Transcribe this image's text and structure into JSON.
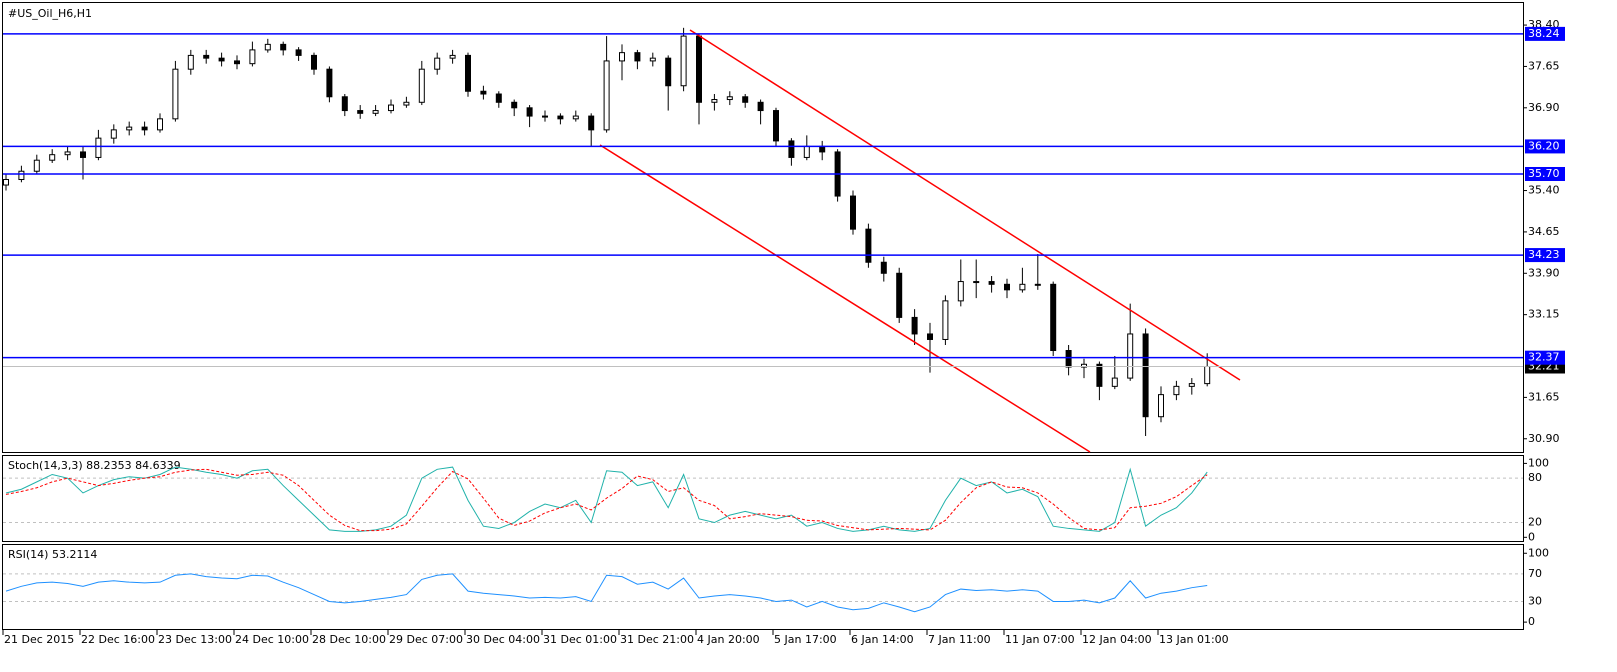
{
  "chart_data": {
    "type": "candlestick",
    "title": "#US_Oil_H6,H1",
    "categories": [
      "21 Dec 2015",
      null,
      null,
      null,
      null,
      "22 Dec 16:00",
      null,
      null,
      null,
      null,
      "23 Dec 13:00",
      null,
      null,
      null,
      null,
      "24 Dec 10:00",
      null,
      null,
      null,
      null,
      "28 Dec 10:00",
      null,
      null,
      null,
      null,
      "29 Dec 07:00",
      null,
      null,
      null,
      null,
      "30 Dec 04:00",
      null,
      null,
      null,
      null,
      "31 Dec 01:00",
      null,
      null,
      null,
      null,
      "31 Dec 21:00",
      null,
      null,
      null,
      null,
      "4 Jan 20:00",
      null,
      null,
      null,
      null,
      "5 Jan 17:00",
      null,
      null,
      null,
      null,
      "6 Jan 14:00",
      null,
      null,
      null,
      null,
      "7 Jan 11:00",
      null,
      null,
      null,
      null,
      "11 Jan 07:00",
      null,
      null,
      null,
      null,
      "12 Jan 04:00",
      null,
      null,
      null,
      null,
      "13 Jan 01:00",
      null,
      null,
      null
    ],
    "ohlc": [
      [
        35.5,
        35.7,
        35.4,
        35.6
      ],
      [
        35.6,
        35.85,
        35.55,
        35.75
      ],
      [
        35.75,
        36.05,
        35.7,
        35.95
      ],
      [
        35.95,
        36.15,
        35.9,
        36.05
      ],
      [
        36.05,
        36.2,
        35.95,
        36.1
      ],
      [
        36.1,
        36.2,
        35.6,
        36.0
      ],
      [
        36.0,
        36.5,
        35.95,
        36.35
      ],
      [
        36.35,
        36.6,
        36.25,
        36.5
      ],
      [
        36.5,
        36.65,
        36.4,
        36.55
      ],
      [
        36.55,
        36.65,
        36.4,
        36.5
      ],
      [
        36.5,
        36.8,
        36.45,
        36.7
      ],
      [
        36.7,
        37.75,
        36.65,
        37.6
      ],
      [
        37.6,
        37.95,
        37.5,
        37.85
      ],
      [
        37.85,
        37.95,
        37.7,
        37.8
      ],
      [
        37.8,
        37.9,
        37.65,
        37.75
      ],
      [
        37.75,
        37.85,
        37.6,
        37.7
      ],
      [
        37.7,
        38.1,
        37.65,
        37.95
      ],
      [
        37.95,
        38.15,
        37.9,
        38.05
      ],
      [
        38.05,
        38.1,
        37.85,
        37.95
      ],
      [
        37.95,
        38.0,
        37.75,
        37.85
      ],
      [
        37.85,
        37.9,
        37.5,
        37.6
      ],
      [
        37.6,
        37.65,
        37.0,
        37.1
      ],
      [
        37.1,
        37.15,
        36.75,
        36.85
      ],
      [
        36.85,
        36.95,
        36.7,
        36.8
      ],
      [
        36.8,
        36.95,
        36.75,
        36.85
      ],
      [
        36.85,
        37.05,
        36.8,
        36.95
      ],
      [
        36.95,
        37.1,
        36.9,
        37.0
      ],
      [
        37.0,
        37.75,
        36.95,
        37.6
      ],
      [
        37.6,
        37.9,
        37.5,
        37.8
      ],
      [
        37.8,
        37.95,
        37.7,
        37.85
      ],
      [
        37.85,
        37.9,
        37.1,
        37.2
      ],
      [
        37.2,
        37.3,
        37.05,
        37.15
      ],
      [
        37.15,
        37.2,
        36.9,
        37.0
      ],
      [
        37.0,
        37.05,
        36.75,
        36.9
      ],
      [
        36.9,
        36.95,
        36.55,
        36.75
      ],
      [
        36.75,
        36.85,
        36.65,
        36.75
      ],
      [
        36.75,
        36.8,
        36.6,
        36.7
      ],
      [
        36.7,
        36.85,
        36.65,
        36.75
      ],
      [
        36.75,
        36.8,
        36.2,
        36.5
      ],
      [
        36.5,
        38.2,
        36.45,
        37.75
      ],
      [
        37.75,
        38.05,
        37.4,
        37.9
      ],
      [
        37.9,
        37.95,
        37.6,
        37.75
      ],
      [
        37.75,
        37.9,
        37.65,
        37.8
      ],
      [
        37.8,
        37.85,
        36.85,
        37.3
      ],
      [
        37.3,
        38.35,
        37.2,
        38.2
      ],
      [
        38.2,
        38.25,
        36.6,
        37.0
      ],
      [
        37.0,
        37.15,
        36.85,
        37.05
      ],
      [
        37.05,
        37.2,
        36.95,
        37.1
      ],
      [
        37.1,
        37.15,
        36.9,
        37.0
      ],
      [
        37.0,
        37.05,
        36.6,
        36.85
      ],
      [
        36.85,
        36.9,
        36.2,
        36.3
      ],
      [
        36.3,
        36.35,
        35.85,
        36.0
      ],
      [
        36.0,
        36.4,
        35.95,
        36.2
      ],
      [
        36.2,
        36.3,
        35.95,
        36.1
      ],
      [
        36.1,
        36.15,
        35.2,
        35.3
      ],
      [
        35.3,
        35.4,
        34.6,
        34.7
      ],
      [
        34.7,
        34.8,
        34.0,
        34.1
      ],
      [
        34.1,
        34.2,
        33.75,
        33.9
      ],
      [
        33.9,
        34.0,
        33.0,
        33.1
      ],
      [
        33.1,
        33.25,
        32.6,
        32.8
      ],
      [
        32.8,
        33.0,
        32.1,
        32.7
      ],
      [
        32.7,
        33.5,
        32.6,
        33.4
      ],
      [
        33.4,
        34.15,
        33.3,
        33.75
      ],
      [
        33.75,
        34.15,
        33.45,
        33.75
      ],
      [
        33.75,
        33.85,
        33.55,
        33.7
      ],
      [
        33.7,
        33.8,
        33.45,
        33.6
      ],
      [
        33.6,
        34.0,
        33.55,
        33.7
      ],
      [
        33.7,
        34.25,
        33.6,
        33.7
      ],
      [
        33.7,
        33.75,
        32.4,
        32.5
      ],
      [
        32.5,
        32.6,
        32.05,
        32.2
      ],
      [
        32.2,
        32.35,
        32.0,
        32.25
      ],
      [
        32.25,
        32.3,
        31.6,
        31.85
      ],
      [
        31.85,
        32.4,
        31.8,
        32.0
      ],
      [
        32.0,
        33.35,
        31.95,
        32.8
      ],
      [
        32.8,
        32.9,
        30.95,
        31.3
      ],
      [
        31.3,
        31.85,
        31.2,
        31.7
      ],
      [
        31.7,
        31.95,
        31.6,
        31.85
      ],
      [
        31.85,
        32.0,
        31.7,
        31.9
      ],
      [
        31.9,
        32.45,
        31.85,
        32.21
      ]
    ],
    "ylim": [
      30.66,
      38.8
    ],
    "yticks": [
      {
        "value": 38.4,
        "label": "38.40"
      },
      37.65,
      {
        "value": 36.9,
        "label": "36.90"
      },
      {
        "value": 35.4,
        "label": "35.40"
      },
      34.65,
      {
        "value": 33.9,
        "label": "33.90"
      },
      33.15,
      31.65,
      {
        "value": 30.9,
        "label": "30.90"
      }
    ],
    "levels": [
      {
        "value": 38.24,
        "label": "38.24"
      },
      {
        "value": 36.2,
        "label": "36.20"
      },
      {
        "value": 35.7,
        "label": "35.70"
      },
      {
        "value": 34.23,
        "label": "34.23"
      },
      {
        "value": 32.37,
        "label": "32.37"
      }
    ],
    "current_price": 32.21,
    "bull_color": "#ffffff",
    "bear_color": "#000000",
    "level_color": "#0000ff",
    "stoch": {
      "title": "Stoch(14,3,3) 88.2353 84.6339",
      "ylim": [
        -5,
        110
      ],
      "yticks": [
        100,
        80,
        20,
        0
      ],
      "series": [
        {
          "name": "Main",
          "color": "#20b2aa",
          "values": [
            60,
            65,
            75,
            85,
            80,
            60,
            70,
            78,
            82,
            80,
            85,
            95,
            92,
            88,
            85,
            80,
            90,
            92,
            70,
            50,
            30,
            10,
            8,
            8,
            10,
            15,
            30,
            80,
            92,
            95,
            50,
            15,
            12,
            20,
            35,
            45,
            40,
            50,
            20,
            90,
            88,
            70,
            75,
            40,
            85,
            25,
            20,
            30,
            35,
            30,
            25,
            30,
            15,
            20,
            12,
            8,
            10,
            15,
            10,
            8,
            12,
            50,
            80,
            70,
            75,
            60,
            65,
            55,
            15,
            12,
            10,
            8,
            20,
            92,
            15,
            30,
            40,
            60,
            88.2353
          ]
        },
        {
          "name": "Signal",
          "color": "#ff0000",
          "values": [
            58,
            62,
            67,
            75,
            80,
            75,
            70,
            73,
            77,
            80,
            82,
            88,
            91,
            92,
            88,
            84,
            85,
            88,
            84,
            70,
            50,
            30,
            16,
            9,
            9,
            11,
            18,
            42,
            67,
            89,
            79,
            53,
            26,
            16,
            22,
            33,
            40,
            45,
            37,
            53,
            66,
            83,
            78,
            62,
            67,
            50,
            43,
            25,
            28,
            32,
            30,
            28,
            23,
            22,
            16,
            13,
            10,
            11,
            12,
            11,
            10,
            23,
            47,
            67,
            75,
            68,
            67,
            60,
            45,
            27,
            12,
            10,
            13,
            40,
            42,
            46,
            55,
            70,
            84.6339
          ]
        }
      ]
    },
    "rsi": {
      "title": "RSI(14) 53.2114",
      "ylim": [
        -10,
        112
      ],
      "yticks": [
        100,
        70,
        30,
        0
      ],
      "series": [
        {
          "name": "RSI",
          "color": "#1e90ff",
          "values": [
            45,
            52,
            57,
            58,
            56,
            52,
            58,
            60,
            58,
            57,
            58,
            68,
            70,
            66,
            64,
            63,
            68,
            67,
            58,
            50,
            40,
            30,
            28,
            30,
            33,
            36,
            40,
            62,
            68,
            70,
            45,
            42,
            40,
            38,
            35,
            36,
            35,
            37,
            30,
            68,
            66,
            55,
            58,
            48,
            64,
            35,
            38,
            40,
            38,
            35,
            30,
            32,
            22,
            30,
            22,
            18,
            20,
            28,
            22,
            15,
            22,
            40,
            48,
            46,
            47,
            45,
            47,
            45,
            30,
            30,
            32,
            28,
            35,
            60,
            35,
            42,
            45,
            50,
            53.2114
          ]
        }
      ]
    }
  }
}
